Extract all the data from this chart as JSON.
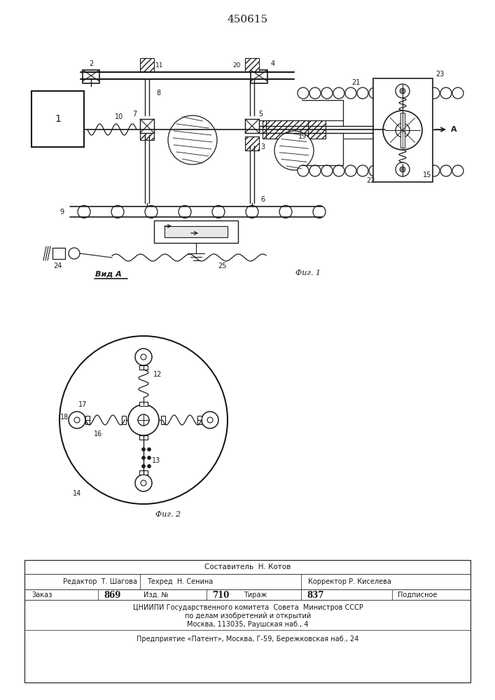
{
  "patent_number": "450615",
  "fig1_caption": "Фиг. 1",
  "fig2_caption": "Фиг. 2",
  "view_label": "Вид А",
  "bg_color": "#ffffff",
  "line_color": "#1a1a1a",
  "fig_width": 7.07,
  "fig_height": 10.0
}
